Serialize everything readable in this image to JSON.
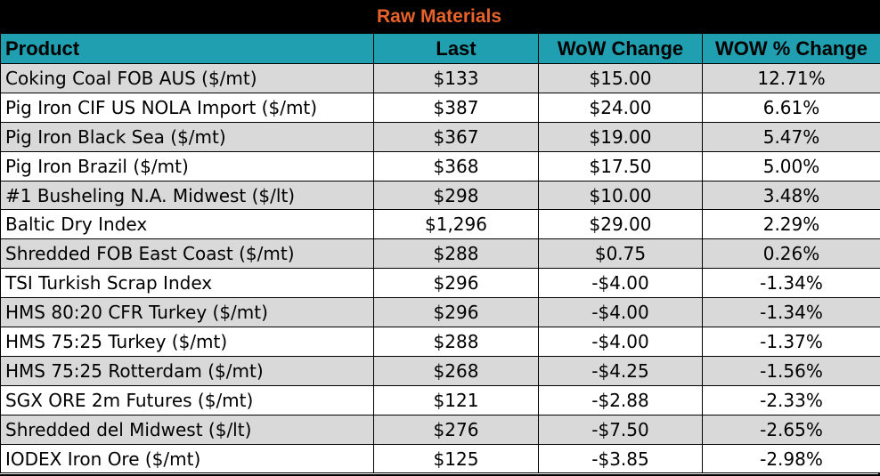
{
  "title": "Raw Materials",
  "headers": [
    "Product",
    "Last",
    "WoW Change",
    "WOW % Change"
  ],
  "rows": [
    {
      "product": "Coking Coal FOB AUS ($/mt)",
      "last": "$133",
      "wow": "$15.00",
      "pct": "12.71%"
    },
    {
      "product": "Pig Iron CIF US NOLA Import ($/mt)",
      "last": "$387",
      "wow": "$24.00",
      "pct": "6.61%"
    },
    {
      "product": "Pig Iron Black Sea ($/mt)",
      "last": "$367",
      "wow": "$19.00",
      "pct": "5.47%"
    },
    {
      "product": "Pig Iron Brazil ($/mt)",
      "last": "$368",
      "wow": "$17.50",
      "pct": "5.00%"
    },
    {
      "product": "#1 Busheling N.A. Midwest ($/lt)",
      "last": "$298",
      "wow": "$10.00",
      "pct": "3.48%"
    },
    {
      "product": "Baltic Dry Index",
      "last": "$1,296",
      "wow": "$29.00",
      "pct": "2.29%"
    },
    {
      "product": "Shredded FOB East Coast ($/mt)",
      "last": "$288",
      "wow": "$0.75",
      "pct": "0.26%"
    },
    {
      "product": "TSI Turkish Scrap Index",
      "last": "$296",
      "wow": "-$4.00",
      "pct": "-1.34%"
    },
    {
      "product": "HMS 80:20 CFR Turkey ($/mt)",
      "last": "$296",
      "wow": "-$4.00",
      "pct": "-1.34%"
    },
    {
      "product": "HMS 75:25 Turkey ($/mt)",
      "last": "$288",
      "wow": "-$4.00",
      "pct": "-1.37%"
    },
    {
      "product": "HMS 75:25 Rotterdam ($/mt)",
      "last": "$268",
      "wow": "-$4.25",
      "pct": "-1.56%"
    },
    {
      "product": "SGX ORE 2m Futures ($/mt)",
      "last": "$121",
      "wow": "-$2.88",
      "pct": "-2.33%"
    },
    {
      "product": "Shredded del  Midwest ($/lt)",
      "last": "$276",
      "wow": "-$7.50",
      "pct": "-2.65%"
    },
    {
      "product": "IODEX  Iron Ore ($/mt)",
      "last": "$125",
      "wow": "-$3.85",
      "pct": "-2.98%"
    }
  ],
  "colors": {
    "title_bg": "#000000",
    "title_text": "#e8632a",
    "header_bg": "#1f9faf",
    "row_shade": "#d9d9d9"
  }
}
